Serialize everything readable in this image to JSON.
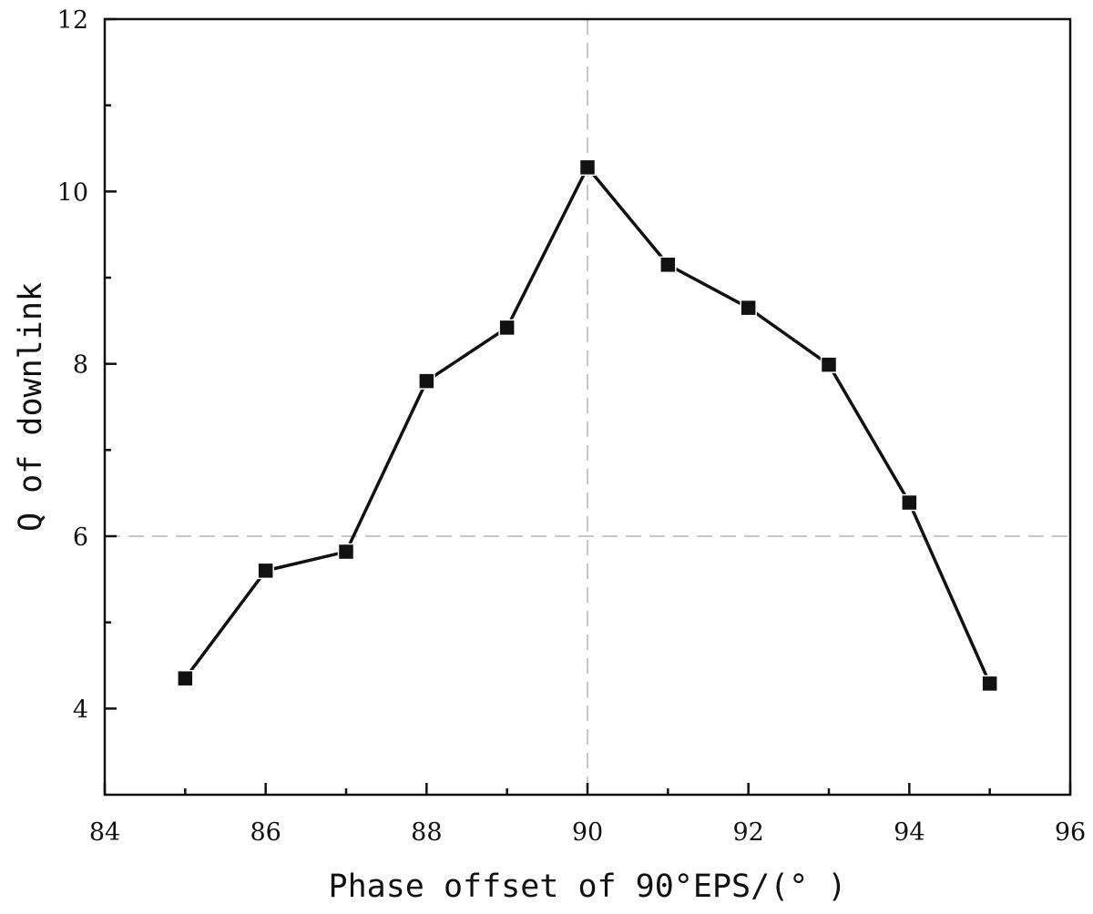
{
  "chart_data": {
    "type": "line",
    "title": "",
    "xlabel": "Phase offset of 90°EPS/(° )",
    "ylabel": "Q of downlink",
    "xlim": [
      84,
      96
    ],
    "ylim": [
      3,
      12
    ],
    "x_ticks": [
      "84",
      "86",
      "88",
      "90",
      "92",
      "94",
      "96"
    ],
    "y_ticks": [
      "4",
      "6",
      "8",
      "10",
      "12"
    ],
    "grid": false,
    "reference_lines": [
      {
        "orientation": "vertical",
        "value": 90,
        "style": "dashed",
        "color": "#c8c8c8"
      },
      {
        "orientation": "horizontal",
        "value": 6,
        "style": "dashed",
        "color": "#c8c8c8"
      }
    ],
    "series": [
      {
        "marker": "square",
        "color": "#111111",
        "x": [
          85,
          86,
          87,
          88,
          89,
          90,
          91,
          92,
          93,
          94,
          95
        ],
        "y": [
          4.35,
          5.6,
          5.82,
          7.8,
          8.42,
          10.28,
          9.15,
          8.65,
          7.99,
          6.39,
          4.29
        ]
      }
    ]
  }
}
